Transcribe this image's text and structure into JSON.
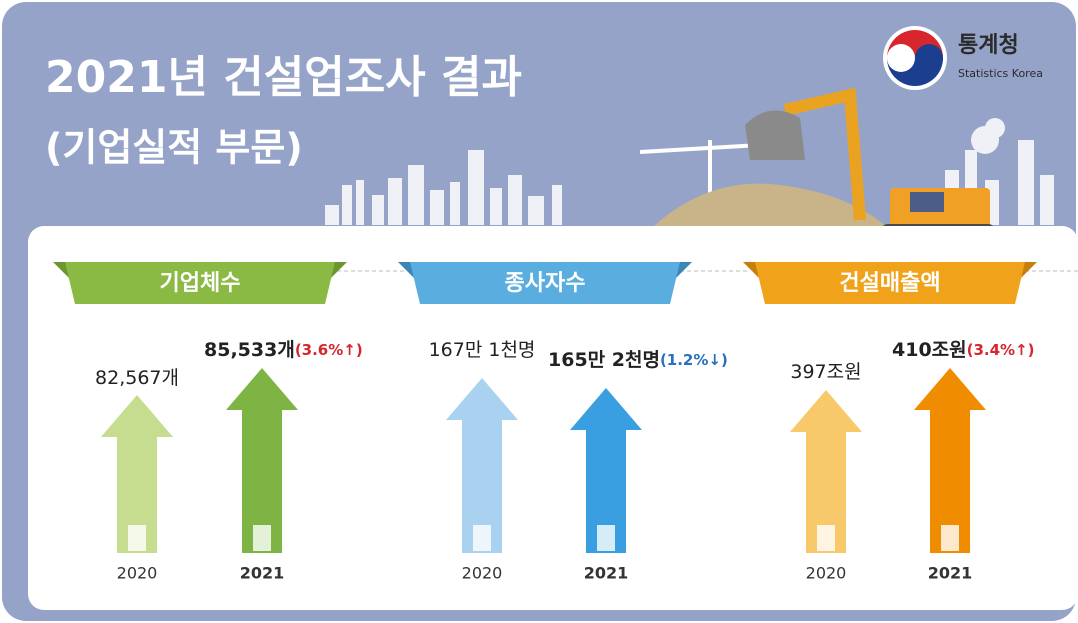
{
  "header": {
    "title": "2021년 건설업조사 결과",
    "subtitle": "(기업실적 부문)"
  },
  "logo": {
    "name": "통계청",
    "english": "Statistics Korea"
  },
  "panels": [
    {
      "title": "기업체수",
      "items": [
        {
          "year": "2020",
          "value": "82,567개"
        },
        {
          "year": "2021",
          "value": "85,533개",
          "change": "(3.6%↑)"
        }
      ]
    },
    {
      "title": "종사자수",
      "items": [
        {
          "year": "2020",
          "value": "167만 1천명"
        },
        {
          "year": "2021",
          "value": "165만 2천명",
          "change": "(1.2%↓)"
        }
      ]
    },
    {
      "title": "건설매출액",
      "items": [
        {
          "year": "2020",
          "value": "397조원"
        },
        {
          "year": "2021",
          "value": "410조원",
          "change": "(3.4%↑)"
        }
      ]
    }
  ]
}
